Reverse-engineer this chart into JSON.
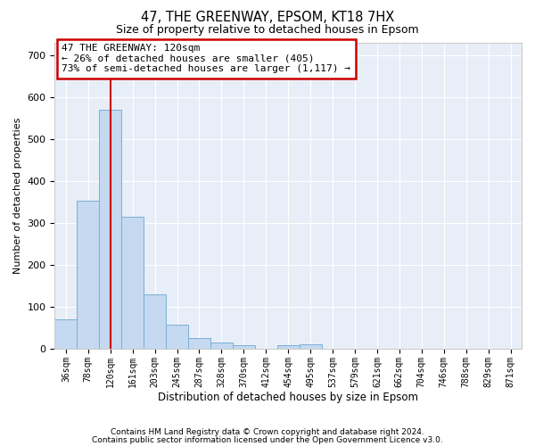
{
  "title": "47, THE GREENWAY, EPSOM, KT18 7HX",
  "subtitle": "Size of property relative to detached houses in Epsom",
  "xlabel": "Distribution of detached houses by size in Epsom",
  "ylabel": "Number of detached properties",
  "bar_color": "#c5d9f0",
  "bar_edge_color": "#7aafd4",
  "vline_color": "#cc0000",
  "vline_x": 2,
  "annotation_line1": "47 THE GREENWAY: 120sqm",
  "annotation_line2": "← 26% of detached houses are smaller (405)",
  "annotation_line3": "73% of semi-detached houses are larger (1,117) →",
  "categories": [
    "36sqm",
    "78sqm",
    "120sqm",
    "161sqm",
    "203sqm",
    "245sqm",
    "287sqm",
    "328sqm",
    "370sqm",
    "412sqm",
    "454sqm",
    "495sqm",
    "537sqm",
    "579sqm",
    "621sqm",
    "662sqm",
    "704sqm",
    "746sqm",
    "788sqm",
    "829sqm",
    "871sqm"
  ],
  "values": [
    70,
    352,
    570,
    315,
    130,
    57,
    25,
    15,
    8,
    0,
    8,
    10,
    0,
    0,
    0,
    0,
    0,
    0,
    0,
    0,
    0
  ],
  "ylim": [
    0,
    730
  ],
  "yticks": [
    0,
    100,
    200,
    300,
    400,
    500,
    600,
    700
  ],
  "footer1": "Contains HM Land Registry data © Crown copyright and database right 2024.",
  "footer2": "Contains public sector information licensed under the Open Government Licence v3.0.",
  "plot_bg_color": "#e8eef8"
}
